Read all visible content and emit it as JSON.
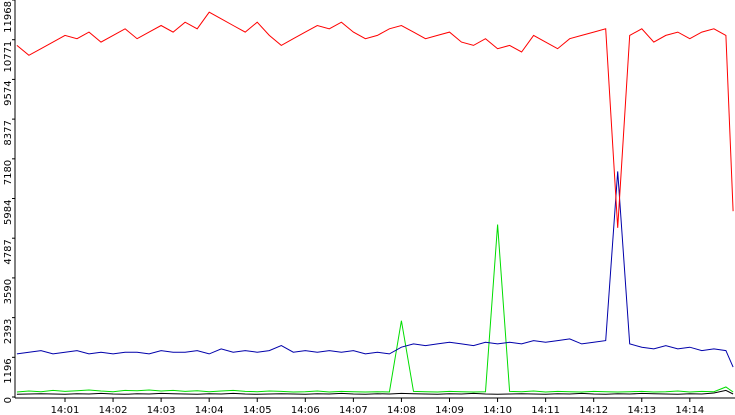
{
  "chart_data": {
    "type": "line",
    "x": [
      0,
      0.25,
      0.5,
      0.75,
      1,
      1.25,
      1.5,
      1.75,
      2,
      2.25,
      2.5,
      2.75,
      3,
      3.25,
      3.5,
      3.75,
      4,
      4.25,
      4.5,
      4.75,
      5,
      5.25,
      5.5,
      5.75,
      6,
      6.25,
      6.5,
      6.75,
      7,
      7.25,
      7.5,
      7.75,
      8,
      8.25,
      8.5,
      8.75,
      9,
      9.25,
      9.5,
      9.75,
      10,
      10.25,
      10.5,
      10.75,
      11,
      11.25,
      11.5,
      11.75,
      12,
      12.25,
      12.5,
      12.75,
      13,
      13.25,
      13.5,
      13.75,
      14,
      14.25,
      14.5,
      14.75,
      14.9
    ],
    "series": [
      {
        "color": "#ff0000",
        "values": [
          10600,
          10300,
          10500,
          10700,
          10900,
          10800,
          11000,
          10700,
          10900,
          11100,
          10800,
          11000,
          11200,
          11000,
          11300,
          11100,
          11600,
          11400,
          11200,
          11000,
          11300,
          10900,
          10600,
          10800,
          11000,
          11200,
          11100,
          11300,
          11000,
          10800,
          10900,
          11100,
          11200,
          11000,
          10800,
          10900,
          11000,
          10700,
          10600,
          10800,
          10500,
          10600,
          10400,
          10900,
          10700,
          10500,
          10800,
          10900,
          11000,
          11100,
          5100,
          10900,
          11100,
          10700,
          10900,
          11000,
          10800,
          11000,
          11100,
          10900,
          5600
        ]
      },
      {
        "color": "#0000aa",
        "values": [
          1300,
          1350,
          1400,
          1300,
          1350,
          1400,
          1300,
          1350,
          1300,
          1350,
          1350,
          1300,
          1400,
          1350,
          1350,
          1400,
          1300,
          1450,
          1350,
          1400,
          1350,
          1400,
          1550,
          1350,
          1400,
          1350,
          1400,
          1350,
          1400,
          1300,
          1350,
          1300,
          1500,
          1600,
          1550,
          1600,
          1650,
          1600,
          1550,
          1650,
          1600,
          1650,
          1600,
          1700,
          1650,
          1700,
          1750,
          1600,
          1650,
          1700,
          6800,
          1600,
          1500,
          1450,
          1550,
          1450,
          1500,
          1400,
          1450,
          1400,
          900
        ]
      },
      {
        "color": "#00dd00",
        "values": [
          150,
          180,
          160,
          200,
          170,
          190,
          210,
          180,
          160,
          200,
          190,
          210,
          180,
          200,
          170,
          190,
          160,
          180,
          200,
          170,
          160,
          180,
          170,
          150,
          160,
          180,
          150,
          170,
          160,
          150,
          160,
          150,
          2300,
          170,
          160,
          150,
          170,
          160,
          150,
          160,
          5200,
          170,
          160,
          180,
          150,
          170,
          160,
          150,
          170,
          160,
          150,
          160,
          170,
          150,
          160,
          180,
          150,
          170,
          160,
          300,
          150
        ]
      },
      {
        "color": "#000000",
        "values": [
          80,
          90,
          100,
          90,
          80,
          100,
          90,
          110,
          90,
          80,
          100,
          90,
          110,
          100,
          90,
          80,
          100,
          90,
          110,
          90,
          80,
          90,
          100,
          90,
          80,
          100,
          90,
          110,
          90,
          80,
          100,
          90,
          110,
          100,
          90,
          80,
          100,
          90,
          110,
          90,
          80,
          90,
          100,
          90,
          80,
          100,
          90,
          110,
          90,
          80,
          100,
          90,
          110,
          100,
          90,
          80,
          100,
          90,
          120,
          200,
          90
        ]
      }
    ],
    "xlim": [
      -0.04,
      14.94
    ],
    "xticks": [
      {
        "value": 1,
        "label": "14:01"
      },
      {
        "value": 2,
        "label": "14:02"
      },
      {
        "value": 3,
        "label": "14:03"
      },
      {
        "value": 4,
        "label": "14:04"
      },
      {
        "value": 5,
        "label": "14:05"
      },
      {
        "value": 6,
        "label": "14:06"
      },
      {
        "value": 7,
        "label": "14:07"
      },
      {
        "value": 8,
        "label": "14:08"
      },
      {
        "value": 9,
        "label": "14:09"
      },
      {
        "value": 10,
        "label": "14:10"
      },
      {
        "value": 11,
        "label": "14:11"
      },
      {
        "value": 12,
        "label": "14:12"
      },
      {
        "value": 13,
        "label": "14:13"
      },
      {
        "value": 14,
        "label": "14:14"
      }
    ],
    "ylim": [
      0,
      11968
    ],
    "yticks": [
      0,
      1196,
      2393,
      3590,
      4787,
      5984,
      7180,
      8377,
      9574,
      10771,
      11968
    ]
  }
}
